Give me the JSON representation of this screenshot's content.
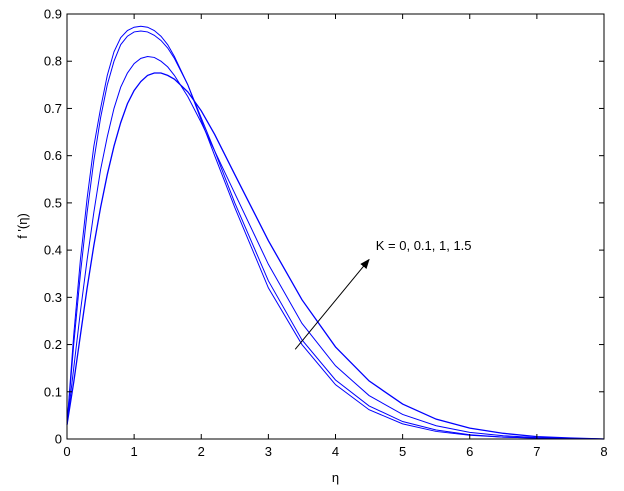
{
  "chart_data": {
    "type": "line",
    "title": "",
    "xlabel": "η",
    "ylabel": "f '(η)",
    "xlim": [
      0,
      8
    ],
    "ylim": [
      0,
      0.9
    ],
    "xticks": [
      "0",
      "1",
      "2",
      "3",
      "4",
      "5",
      "6",
      "7",
      "8"
    ],
    "yticks": [
      "0",
      "0.1",
      "0.2",
      "0.3",
      "0.4",
      "0.5",
      "0.6",
      "0.7",
      "0.8",
      "0.9"
    ],
    "grid": false,
    "series_color": "#0000ff",
    "series": [
      {
        "x": [
          0,
          0.1,
          0.2,
          0.3,
          0.4,
          0.5,
          0.6,
          0.7,
          0.8,
          0.9,
          1.0,
          1.1,
          1.2,
          1.3,
          1.4,
          1.5,
          1.6,
          1.8,
          2.0,
          2.2,
          2.5,
          3.0,
          3.5,
          4.0,
          4.5,
          5.0,
          5.5,
          6.0,
          6.5,
          7.0,
          7.5,
          8.0
        ],
        "y": [
          0.03,
          0.22,
          0.38,
          0.51,
          0.62,
          0.7,
          0.77,
          0.82,
          0.85,
          0.865,
          0.872,
          0.874,
          0.872,
          0.865,
          0.853,
          0.835,
          0.81,
          0.75,
          0.675,
          0.6,
          0.49,
          0.32,
          0.2,
          0.115,
          0.062,
          0.032,
          0.016,
          0.008,
          0.004,
          0.002,
          0.001,
          0.0
        ]
      },
      {
        "x": [
          0,
          0.1,
          0.2,
          0.3,
          0.4,
          0.5,
          0.6,
          0.7,
          0.8,
          0.9,
          1.0,
          1.1,
          1.2,
          1.3,
          1.4,
          1.5,
          1.6,
          1.8,
          2.0,
          2.2,
          2.5,
          3.0,
          3.5,
          4.0,
          4.5,
          5.0,
          5.5,
          6.0,
          6.5,
          7.0,
          7.5,
          8.0
        ],
        "y": [
          0.03,
          0.2,
          0.35,
          0.48,
          0.59,
          0.68,
          0.75,
          0.8,
          0.835,
          0.853,
          0.862,
          0.864,
          0.862,
          0.855,
          0.844,
          0.828,
          0.806,
          0.75,
          0.68,
          0.61,
          0.5,
          0.335,
          0.21,
          0.125,
          0.07,
          0.037,
          0.019,
          0.009,
          0.004,
          0.002,
          0.001,
          0.0
        ]
      },
      {
        "x": [
          0,
          0.1,
          0.2,
          0.3,
          0.4,
          0.5,
          0.6,
          0.7,
          0.8,
          0.9,
          1.0,
          1.1,
          1.2,
          1.3,
          1.4,
          1.5,
          1.6,
          1.8,
          2.0,
          2.2,
          2.5,
          3.0,
          3.5,
          4.0,
          4.5,
          5.0,
          5.5,
          6.0,
          6.5,
          7.0,
          7.5,
          8.0
        ],
        "y": [
          0.03,
          0.15,
          0.27,
          0.38,
          0.48,
          0.57,
          0.64,
          0.7,
          0.745,
          0.775,
          0.795,
          0.806,
          0.81,
          0.808,
          0.8,
          0.788,
          0.77,
          0.725,
          0.67,
          0.61,
          0.52,
          0.37,
          0.245,
          0.155,
          0.092,
          0.052,
          0.028,
          0.014,
          0.007,
          0.003,
          0.001,
          0.0
        ]
      },
      {
        "x": [
          0,
          0.1,
          0.2,
          0.3,
          0.4,
          0.5,
          0.6,
          0.7,
          0.8,
          0.9,
          1.0,
          1.1,
          1.2,
          1.3,
          1.4,
          1.5,
          1.6,
          1.8,
          2.0,
          2.2,
          2.5,
          3.0,
          3.5,
          4.0,
          4.5,
          5.0,
          5.5,
          6.0,
          6.5,
          7.0,
          7.5,
          8.0
        ],
        "y": [
          0.03,
          0.12,
          0.22,
          0.32,
          0.41,
          0.49,
          0.56,
          0.62,
          0.67,
          0.71,
          0.738,
          0.757,
          0.77,
          0.775,
          0.775,
          0.77,
          0.762,
          0.735,
          0.695,
          0.645,
          0.56,
          0.42,
          0.295,
          0.195,
          0.123,
          0.074,
          0.042,
          0.023,
          0.012,
          0.005,
          0.002,
          0.0
        ]
      }
    ],
    "annotation": {
      "text": "K = 0, 0.1, 1, 1.5",
      "arrow_from": [
        3.4,
        0.19
      ],
      "arrow_to": [
        4.5,
        0.38
      ],
      "text_at": [
        4.6,
        0.4
      ]
    }
  }
}
